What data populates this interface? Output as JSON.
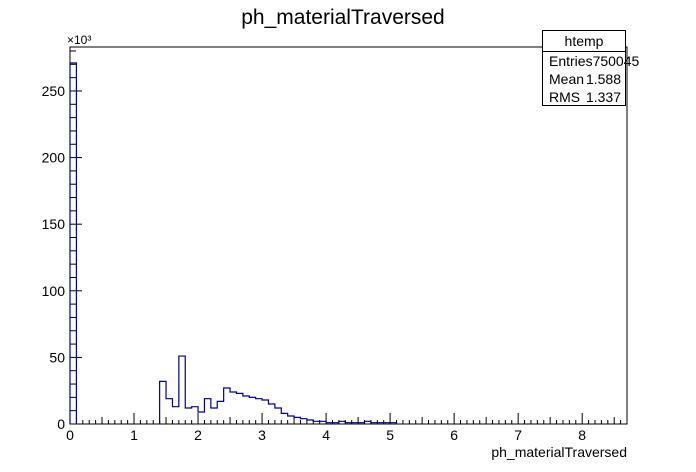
{
  "chart_data": {
    "type": "histogram",
    "title": "ph_materialTraversed",
    "xlabel": "ph_materialTraversed",
    "ylabel": "",
    "y_multiplier_label": "×10³",
    "xlim": [
      0,
      8.7
    ],
    "ylim": [
      0,
      283
    ],
    "bin_width": 0.1,
    "line_color": "#00008b",
    "x_ticks": [
      "0",
      "1",
      "2",
      "3",
      "4",
      "5",
      "6",
      "7",
      "8"
    ],
    "y_ticks": [
      "0",
      "50",
      "100",
      "150",
      "200",
      "250"
    ],
    "bins": [
      {
        "x0": 0.0,
        "y": 271
      },
      {
        "x0": 1.4,
        "y": 32
      },
      {
        "x0": 1.5,
        "y": 19
      },
      {
        "x0": 1.6,
        "y": 13
      },
      {
        "x0": 1.7,
        "y": 51
      },
      {
        "x0": 1.8,
        "y": 12
      },
      {
        "x0": 1.9,
        "y": 13
      },
      {
        "x0": 2.0,
        "y": 9
      },
      {
        "x0": 2.1,
        "y": 19
      },
      {
        "x0": 2.2,
        "y": 12
      },
      {
        "x0": 2.3,
        "y": 17
      },
      {
        "x0": 2.4,
        "y": 27
      },
      {
        "x0": 2.5,
        "y": 24
      },
      {
        "x0": 2.6,
        "y": 23
      },
      {
        "x0": 2.7,
        "y": 21
      },
      {
        "x0": 2.8,
        "y": 20
      },
      {
        "x0": 2.9,
        "y": 19
      },
      {
        "x0": 3.0,
        "y": 18
      },
      {
        "x0": 3.1,
        "y": 15
      },
      {
        "x0": 3.2,
        "y": 12
      },
      {
        "x0": 3.3,
        "y": 8
      },
      {
        "x0": 3.4,
        "y": 6
      },
      {
        "x0": 3.5,
        "y": 5
      },
      {
        "x0": 3.6,
        "y": 4
      },
      {
        "x0": 3.7,
        "y": 3
      },
      {
        "x0": 3.8,
        "y": 2
      },
      {
        "x0": 3.9,
        "y": 2
      },
      {
        "x0": 4.0,
        "y": 1
      },
      {
        "x0": 4.1,
        "y": 1
      },
      {
        "x0": 4.2,
        "y": 2
      },
      {
        "x0": 4.3,
        "y": 1
      },
      {
        "x0": 4.4,
        "y": 1
      },
      {
        "x0": 4.5,
        "y": 1
      },
      {
        "x0": 4.6,
        "y": 2
      },
      {
        "x0": 4.7,
        "y": 1
      },
      {
        "x0": 4.8,
        "y": 1
      },
      {
        "x0": 4.9,
        "y": 1
      },
      {
        "x0": 5.0,
        "y": 1
      }
    ],
    "legend": {
      "title": "htemp",
      "rows": [
        {
          "label": "Entries",
          "value": "750045"
        },
        {
          "label": "Mean",
          "value": "1.588"
        },
        {
          "label": "RMS",
          "value": "1.337"
        }
      ]
    }
  }
}
